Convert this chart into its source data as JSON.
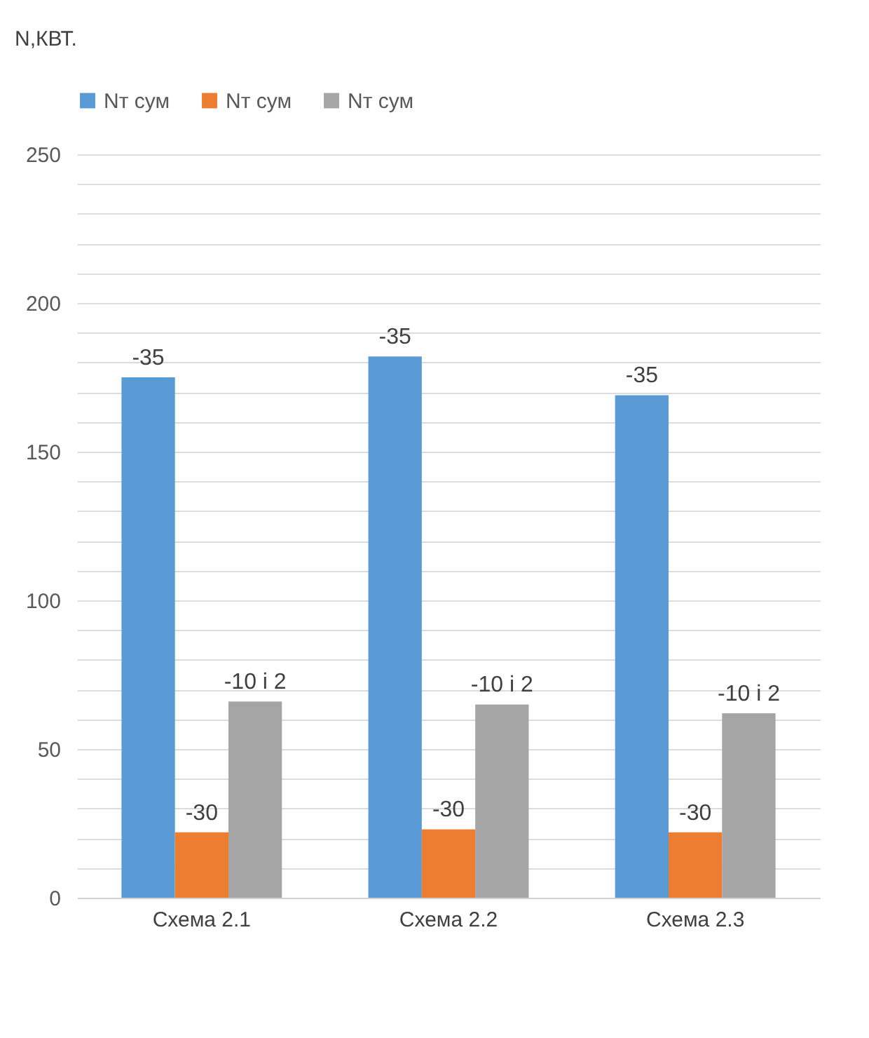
{
  "chart_data": {
    "type": "bar",
    "ylabel": "N,КВТ.",
    "categories": [
      "Схема 2.1",
      "Схема 2.2",
      "Схема 2.3"
    ],
    "series": [
      {
        "name": "Nт сум",
        "color": "#5b9bd5",
        "values": [
          175,
          182,
          169
        ]
      },
      {
        "name": "Nт сум",
        "color": "#ed7d31",
        "values": [
          22,
          23,
          22
        ]
      },
      {
        "name": "Nт сум",
        "color": "#a5a5a5",
        "values": [
          66,
          65,
          62
        ]
      }
    ],
    "annotations": [
      "-35",
      "-30",
      "-10 і 2",
      "-35",
      "-30",
      "-10 і 2",
      "-35",
      "-30",
      "-10 і 2"
    ],
    "ylim": [
      0,
      250
    ],
    "yticks": [
      0,
      {
        "value": 10,
        "label": null
      },
      {
        "value": 20,
        "label": null
      },
      {
        "value": 30,
        "label": null
      },
      {
        "value": 40,
        "label": null
      },
      50,
      {
        "value": 60,
        "label": null
      },
      {
        "value": 70,
        "label": null
      },
      {
        "value": 80,
        "label": null
      },
      {
        "value": 90,
        "label": null
      },
      100,
      {
        "value": 110,
        "label": null
      },
      {
        "value": 120,
        "label": null
      },
      {
        "value": 130,
        "label": null
      },
      {
        "value": 140,
        "label": null
      },
      150,
      {
        "value": 160,
        "label": null
      },
      {
        "value": 170,
        "label": null
      },
      {
        "value": 180,
        "label": null
      },
      {
        "value": 190,
        "label": null
      },
      200,
      {
        "value": 210,
        "label": null
      },
      {
        "value": 220,
        "label": null
      },
      {
        "value": 230,
        "label": null
      },
      {
        "value": 240,
        "label": null
      },
      250
    ],
    "grid": "y",
    "legend": "top"
  }
}
